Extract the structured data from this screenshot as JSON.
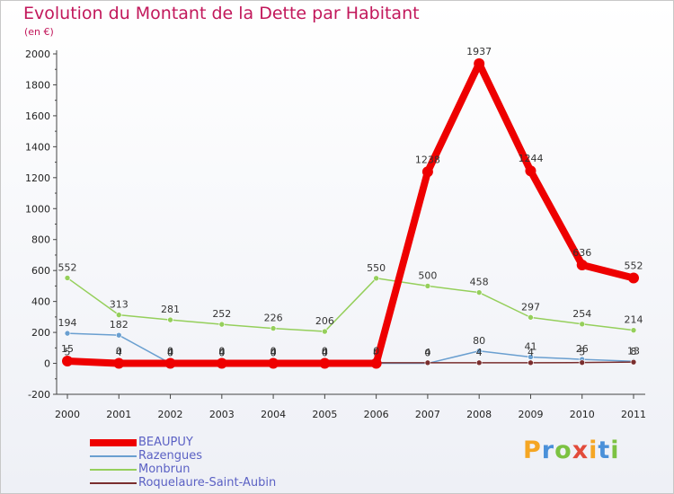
{
  "chart_data": {
    "type": "line",
    "title": "Evolution du Montant de la Dette par Habitant",
    "subtitle": "(en €)",
    "xlabel": "",
    "ylabel": "",
    "x": [
      "2000",
      "2001",
      "2002",
      "2003",
      "2004",
      "2005",
      "2006",
      "2007",
      "2008",
      "2009",
      "2010",
      "2011"
    ],
    "ylim": [
      -200,
      2000
    ],
    "yticks": [
      -200,
      0,
      200,
      400,
      600,
      800,
      1000,
      1200,
      1400,
      1600,
      1800,
      2000
    ],
    "grid": false,
    "legend_position": "bottom-left",
    "series": [
      {
        "name": "Monbrun",
        "color": "#95cf5b",
        "values": [
          552,
          313,
          281,
          252,
          226,
          206,
          550,
          500,
          458,
          297,
          254,
          214
        ],
        "labels": [
          "552",
          "313",
          "281",
          "252",
          "226",
          "206",
          "550",
          "500",
          "458",
          "297",
          "254",
          "214"
        ]
      },
      {
        "name": "Razengues",
        "color": "#6a9fd0",
        "values": [
          194,
          182,
          0,
          0,
          0,
          0,
          0,
          0,
          80,
          41,
          26,
          13
        ],
        "labels": [
          "194",
          "182",
          "0",
          "0",
          "0",
          "0",
          "0",
          "0",
          "80",
          "41",
          "26",
          "13"
        ]
      },
      {
        "name": "Roquelaure-Saint-Aubin",
        "color": "#7a2e2e",
        "values": [
          5,
          4,
          4,
          4,
          4,
          4,
          4,
          4,
          4,
          4,
          5,
          8
        ],
        "labels": [
          "5",
          "4",
          "4",
          "4",
          "4",
          "4",
          "4",
          "4",
          "4",
          "4",
          "5",
          "8"
        ]
      },
      {
        "name": "BEAUPUY",
        "color": "#ee0000",
        "values": [
          15,
          0,
          0,
          0,
          0,
          0,
          0,
          1238,
          1937,
          1244,
          636,
          552
        ],
        "labels": [
          "15",
          "0",
          "0",
          "0",
          "0",
          "0",
          "0",
          "1238",
          "1937",
          "1244",
          "636",
          "552"
        ]
      }
    ]
  },
  "legend": [
    {
      "name": "BEAUPUY",
      "color": "#ee0000"
    },
    {
      "name": "Razengues",
      "color": "#6a9fd0"
    },
    {
      "name": "Monbrun",
      "color": "#95cf5b"
    },
    {
      "name": "Roquelaure-Saint-Aubin",
      "color": "#7a2e2e"
    }
  ],
  "brand": {
    "letters": [
      "P",
      "r",
      "o",
      "x",
      "i",
      "t",
      "i"
    ],
    "colors": [
      "#f5a623",
      "#4a90d9",
      "#7cc242",
      "#e24b3b",
      "#f5a623",
      "#4a90d9",
      "#7cc242"
    ]
  }
}
